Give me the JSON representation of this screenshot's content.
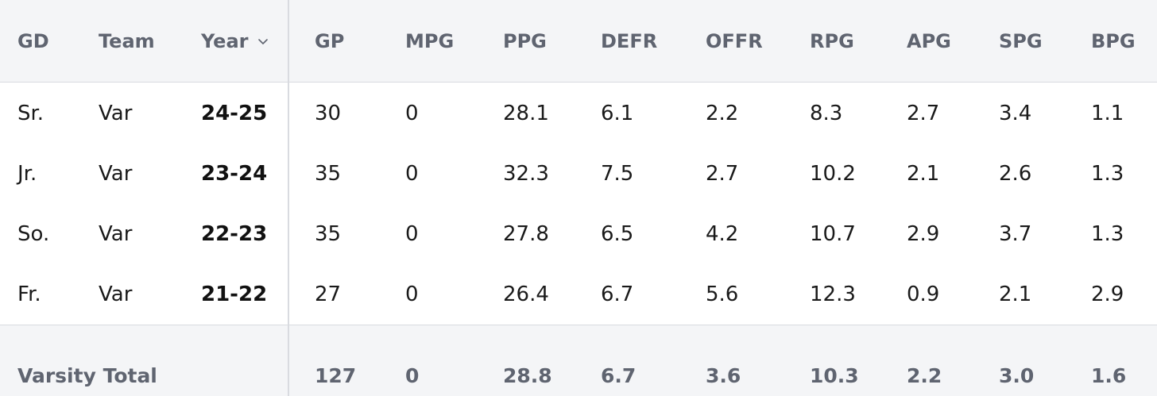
{
  "headers": {
    "gd": "GD",
    "team": "Team",
    "year": "Year",
    "gp": "GP",
    "mpg": "MPG",
    "ppg": "PPG",
    "defr": "DEFR",
    "offr": "OFFR",
    "rpg": "RPG",
    "apg": "APG",
    "spg": "SPG",
    "bpg": "BPG"
  },
  "sort_icon": "chevron-down-icon",
  "rows": [
    {
      "gd": "Sr.",
      "team": "Var",
      "year": "24-25",
      "gp": "30",
      "mpg": "0",
      "ppg": "28.1",
      "defr": "6.1",
      "offr": "2.2",
      "rpg": "8.3",
      "apg": "2.7",
      "spg": "3.4",
      "bpg": "1.1"
    },
    {
      "gd": "Jr.",
      "team": "Var",
      "year": "23-24",
      "gp": "35",
      "mpg": "0",
      "ppg": "32.3",
      "defr": "7.5",
      "offr": "2.7",
      "rpg": "10.2",
      "apg": "2.1",
      "spg": "2.6",
      "bpg": "1.3"
    },
    {
      "gd": "So.",
      "team": "Var",
      "year": "22-23",
      "gp": "35",
      "mpg": "0",
      "ppg": "27.8",
      "defr": "6.5",
      "offr": "4.2",
      "rpg": "10.7",
      "apg": "2.9",
      "spg": "3.7",
      "bpg": "1.3"
    },
    {
      "gd": "Fr.",
      "team": "Var",
      "year": "21-22",
      "gp": "27",
      "mpg": "0",
      "ppg": "26.4",
      "defr": "6.7",
      "offr": "5.6",
      "rpg": "12.3",
      "apg": "0.9",
      "spg": "2.1",
      "bpg": "2.9"
    }
  ],
  "total": {
    "label": "Varsity Total",
    "gp": "127",
    "mpg": "0",
    "ppg": "28.8",
    "defr": "6.7",
    "offr": "3.6",
    "rpg": "10.3",
    "apg": "2.2",
    "spg": "3.0",
    "bpg": "1.6"
  }
}
